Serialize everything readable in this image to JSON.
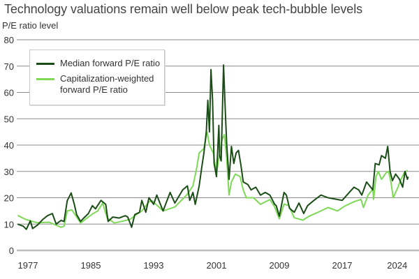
{
  "chart_data": {
    "type": "line",
    "title": "Technology valuations remain well below peak tech-bubble levels",
    "ylabel": "P/E ratio level",
    "xlabel": "",
    "ylim": [
      0,
      80
    ],
    "yticks": [
      0,
      10,
      20,
      30,
      40,
      50,
      60,
      70,
      80
    ],
    "xticks": [
      1977,
      1985,
      1993,
      2001,
      2009,
      2017,
      2024
    ],
    "grid": true,
    "legend_position": "top-left",
    "series": [
      {
        "name": "Median forward P/E ratio",
        "color": "#1b4d17",
        "points": [
          [
            1975.7,
            10
          ],
          [
            1976.4,
            9.2
          ],
          [
            1976.8,
            8
          ],
          [
            1977.3,
            11.2
          ],
          [
            1977.6,
            8.3
          ],
          [
            1978.2,
            9.6
          ],
          [
            1978.9,
            11.8
          ],
          [
            1979.5,
            13.2
          ],
          [
            1980.1,
            14
          ],
          [
            1980.6,
            10
          ],
          [
            1981.2,
            11.4
          ],
          [
            1981.6,
            11
          ],
          [
            1982.0,
            18.9
          ],
          [
            1982.5,
            21.8
          ],
          [
            1982.9,
            17.5
          ],
          [
            1983.2,
            13.6
          ],
          [
            1983.7,
            11
          ],
          [
            1984.1,
            12.3
          ],
          [
            1984.7,
            14
          ],
          [
            1985.2,
            17
          ],
          [
            1985.6,
            15.8
          ],
          [
            1986.3,
            19
          ],
          [
            1986.9,
            17.5
          ],
          [
            1987.2,
            11
          ],
          [
            1987.8,
            12.7
          ],
          [
            1988.6,
            12.3
          ],
          [
            1989.4,
            13.2
          ],
          [
            1989.7,
            12.7
          ],
          [
            1990.2,
            8.8
          ],
          [
            1990.6,
            13.6
          ],
          [
            1991.2,
            14.5
          ],
          [
            1991.5,
            19
          ],
          [
            1992.0,
            14.5
          ],
          [
            1992.4,
            20
          ],
          [
            1993.0,
            17.5
          ],
          [
            1993.4,
            21
          ],
          [
            1994.2,
            15
          ],
          [
            1995.1,
            22
          ],
          [
            1995.7,
            18
          ],
          [
            1996.7,
            23
          ],
          [
            1997.3,
            24.5
          ],
          [
            1997.6,
            19
          ],
          [
            1998.0,
            22
          ],
          [
            1998.3,
            17.5
          ],
          [
            1998.8,
            24.5
          ],
          [
            1999.1,
            31
          ],
          [
            1999.4,
            37
          ],
          [
            1999.7,
            45
          ],
          [
            1999.9,
            57
          ],
          [
            2000.1,
            45
          ],
          [
            2000.3,
            68.7
          ],
          [
            2000.5,
            57
          ],
          [
            2000.7,
            33
          ],
          [
            2001.0,
            28
          ],
          [
            2001.3,
            47.5
          ],
          [
            2001.4,
            36
          ],
          [
            2001.6,
            34
          ],
          [
            2001.9,
            70.4
          ],
          [
            2002.1,
            54.5
          ],
          [
            2002.3,
            40.5
          ],
          [
            2002.6,
            27
          ],
          [
            2002.9,
            39.5
          ],
          [
            2003.2,
            33
          ],
          [
            2003.5,
            37
          ],
          [
            2003.8,
            38
          ],
          [
            2004.1,
            32.5
          ],
          [
            2004.4,
            26
          ],
          [
            2005.0,
            25
          ],
          [
            2005.4,
            23
          ],
          [
            2006.0,
            24
          ],
          [
            2006.6,
            21
          ],
          [
            2007.2,
            22
          ],
          [
            2007.8,
            21
          ],
          [
            2008.4,
            17.5
          ],
          [
            2008.6,
            17
          ],
          [
            2009.0,
            13
          ],
          [
            2009.6,
            22
          ],
          [
            2009.9,
            21
          ],
          [
            2010.3,
            16
          ],
          [
            2010.9,
            14.5
          ],
          [
            2011.5,
            18
          ],
          [
            2012.1,
            14
          ],
          [
            2012.6,
            17
          ],
          [
            2013.4,
            19
          ],
          [
            2014.3,
            21
          ],
          [
            2015.2,
            20
          ],
          [
            2016.1,
            19.5
          ],
          [
            2017.0,
            19
          ],
          [
            2017.9,
            22
          ],
          [
            2018.5,
            24
          ],
          [
            2019.1,
            23
          ],
          [
            2019.5,
            21
          ],
          [
            2020.1,
            26
          ],
          [
            2020.9,
            23
          ],
          [
            2021.2,
            33
          ],
          [
            2021.7,
            32.5
          ],
          [
            2022.0,
            36
          ],
          [
            2022.5,
            35
          ],
          [
            2022.8,
            39.5
          ],
          [
            2023.1,
            30
          ],
          [
            2023.4,
            26.5
          ],
          [
            2023.8,
            29
          ],
          [
            2024.3,
            27
          ],
          [
            2024.7,
            24
          ],
          [
            2025.0,
            30
          ],
          [
            2025.3,
            27
          ],
          [
            2025.4,
            28
          ]
        ]
      },
      {
        "name": "Capitalization-weighted forward P/E ratio",
        "color": "#7ed957",
        "points": [
          [
            1975.7,
            13.3
          ],
          [
            1976.7,
            11.8
          ],
          [
            1978.2,
            10.5
          ],
          [
            1979.7,
            10.7
          ],
          [
            1980.6,
            9.6
          ],
          [
            1981.2,
            8.8
          ],
          [
            1981.6,
            9.2
          ],
          [
            1982.0,
            15
          ],
          [
            1982.6,
            15.4
          ],
          [
            1983.4,
            11.8
          ],
          [
            1983.7,
            10.4
          ],
          [
            1984.7,
            12.7
          ],
          [
            1985.3,
            14
          ],
          [
            1985.9,
            15
          ],
          [
            1986.5,
            18
          ],
          [
            1987.1,
            12.3
          ],
          [
            1988.0,
            10.4
          ],
          [
            1989.2,
            11.2
          ],
          [
            1990.0,
            11.8
          ],
          [
            1990.8,
            13.6
          ],
          [
            1991.5,
            15
          ],
          [
            1992.4,
            18.4
          ],
          [
            1992.8,
            18.9
          ],
          [
            1994.2,
            15
          ],
          [
            1995.7,
            16.5
          ],
          [
            1997.2,
            21
          ],
          [
            1998.0,
            24.5
          ],
          [
            1998.5,
            31.6
          ],
          [
            1998.8,
            37
          ],
          [
            1999.4,
            38.7
          ],
          [
            1999.8,
            45
          ],
          [
            2000.1,
            40
          ],
          [
            2000.6,
            37
          ],
          [
            2001.0,
            29
          ],
          [
            2001.4,
            37
          ],
          [
            2001.7,
            42
          ],
          [
            2002.0,
            44
          ],
          [
            2002.3,
            35
          ],
          [
            2002.6,
            21
          ],
          [
            2002.9,
            26
          ],
          [
            2003.4,
            29
          ],
          [
            2004.0,
            28
          ],
          [
            2004.4,
            23
          ],
          [
            2004.8,
            20
          ],
          [
            2005.7,
            20
          ],
          [
            2006.6,
            17.5
          ],
          [
            2007.8,
            19.3
          ],
          [
            2008.4,
            16.5
          ],
          [
            2009.0,
            12
          ],
          [
            2009.6,
            17.6
          ],
          [
            2010.2,
            17
          ],
          [
            2010.9,
            12.4
          ],
          [
            2012.0,
            11.5
          ],
          [
            2012.8,
            13
          ],
          [
            2014.0,
            14.6
          ],
          [
            2015.2,
            16.3
          ],
          [
            2016.4,
            15
          ],
          [
            2017.3,
            16.8
          ],
          [
            2018.5,
            18.5
          ],
          [
            2019.4,
            19.4
          ],
          [
            2019.7,
            16.3
          ],
          [
            2020.3,
            21
          ],
          [
            2020.9,
            23.3
          ],
          [
            2021.0,
            19.4
          ],
          [
            2021.3,
            28
          ],
          [
            2021.6,
            30
          ],
          [
            2022.0,
            27
          ],
          [
            2022.6,
            29.5
          ],
          [
            2022.9,
            30
          ],
          [
            2023.2,
            26
          ],
          [
            2023.5,
            20
          ],
          [
            2023.8,
            22
          ],
          [
            2024.1,
            24
          ],
          [
            2024.4,
            26.5
          ],
          [
            2024.9,
            29.5
          ],
          [
            2025.3,
            30.4
          ]
        ]
      }
    ],
    "legend": {
      "median_label": "Median forward P/E ratio",
      "cap_label_line1": "Capitalization-weighted",
      "cap_label_line2": "forward P/E ratio"
    }
  }
}
